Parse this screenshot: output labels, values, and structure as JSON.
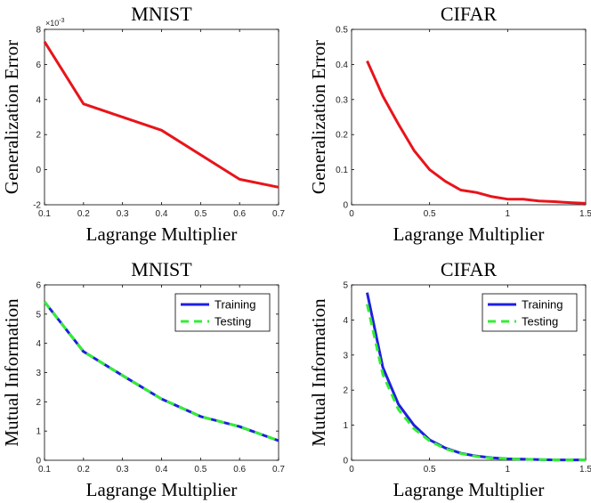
{
  "chart_data": [
    {
      "type": "line",
      "title": "MNIST",
      "xlabel": "Lagrange Multiplier",
      "ylabel": "Generalization Error",
      "xlim": [
        0.1,
        0.7
      ],
      "ylim": [
        -2,
        8
      ],
      "xticks": [
        0.1,
        0.2,
        0.3,
        0.4,
        0.5,
        0.6,
        0.7
      ],
      "xtick_labels": [
        "0.1",
        "0.2",
        "0.3",
        "0.4",
        "0.5",
        "0.6",
        "0.7"
      ],
      "yticks": [
        -2,
        0,
        2,
        4,
        6,
        8
      ],
      "ytick_labels": [
        "-2",
        "0",
        "2",
        "4",
        "6",
        "8"
      ],
      "y_exponent_label": "×10",
      "y_exponent_power": "-3",
      "series": [
        {
          "name": "Generalization Error",
          "color": "#e8141a",
          "dash": "solid",
          "x": [
            0.1,
            0.2,
            0.4,
            0.6,
            0.7
          ],
          "y": [
            7.3,
            3.75,
            2.25,
            -0.55,
            -1.0
          ]
        }
      ]
    },
    {
      "type": "line",
      "title": "CIFAR",
      "xlabel": "Lagrange Multiplier",
      "ylabel": "Generalization Error",
      "xlim": [
        0,
        1.5
      ],
      "ylim": [
        0,
        0.5
      ],
      "xticks": [
        0,
        0.5,
        1,
        1.5
      ],
      "xtick_labels": [
        "0",
        "0.5",
        "1",
        "1.5"
      ],
      "yticks": [
        0,
        0.1,
        0.2,
        0.3,
        0.4,
        0.5
      ],
      "ytick_labels": [
        "0",
        "0.1",
        "0.2",
        "0.3",
        "0.4",
        "0.5"
      ],
      "series": [
        {
          "name": "Generalization Error",
          "color": "#e8141a",
          "dash": "solid",
          "x": [
            0.1,
            0.2,
            0.3,
            0.4,
            0.5,
            0.6,
            0.7,
            0.8,
            0.9,
            1.0,
            1.1,
            1.2,
            1.3,
            1.4,
            1.5
          ],
          "y": [
            0.41,
            0.31,
            0.23,
            0.155,
            0.1,
            0.067,
            0.042,
            0.035,
            0.023,
            0.016,
            0.016,
            0.011,
            0.009,
            0.006,
            0.004
          ]
        }
      ]
    },
    {
      "type": "line",
      "title": "MNIST",
      "xlabel": "Lagrange Multiplier",
      "ylabel": "Mutual Information",
      "xlim": [
        0.1,
        0.7
      ],
      "ylim": [
        0,
        6
      ],
      "xticks": [
        0.1,
        0.2,
        0.3,
        0.4,
        0.5,
        0.6,
        0.7
      ],
      "xtick_labels": [
        "0.1",
        "0.2",
        "0.3",
        "0.4",
        "0.5",
        "0.6",
        "0.7"
      ],
      "yticks": [
        0,
        1,
        2,
        3,
        4,
        5,
        6
      ],
      "ytick_labels": [
        "0",
        "1",
        "2",
        "3",
        "4",
        "5",
        "6"
      ],
      "legend": [
        "Training",
        "Testing"
      ],
      "series": [
        {
          "name": "Training",
          "color": "#1f1fe0",
          "dash": "solid",
          "x": [
            0.1,
            0.2,
            0.3,
            0.4,
            0.5,
            0.6,
            0.7
          ],
          "y": [
            5.42,
            3.72,
            2.9,
            2.1,
            1.5,
            1.15,
            0.67
          ]
        },
        {
          "name": "Testing",
          "color": "#33ee33",
          "dash": "dashed",
          "x": [
            0.1,
            0.2,
            0.3,
            0.4,
            0.5,
            0.6,
            0.7
          ],
          "y": [
            5.42,
            3.72,
            2.9,
            2.1,
            1.5,
            1.15,
            0.67
          ]
        }
      ]
    },
    {
      "type": "line",
      "title": "CIFAR",
      "xlabel": "Lagrange Multiplier",
      "ylabel": "Mutual Information",
      "xlim": [
        0,
        1.5
      ],
      "ylim": [
        0,
        5
      ],
      "xticks": [
        0,
        0.5,
        1,
        1.5
      ],
      "xtick_labels": [
        "0",
        "0.5",
        "1",
        "1.5"
      ],
      "yticks": [
        0,
        1,
        2,
        3,
        4,
        5
      ],
      "ytick_labels": [
        "0",
        "1",
        "2",
        "3",
        "4",
        "5"
      ],
      "legend": [
        "Training",
        "Testing"
      ],
      "series": [
        {
          "name": "Training",
          "color": "#1f1fe0",
          "dash": "solid",
          "x": [
            0.1,
            0.2,
            0.3,
            0.4,
            0.5,
            0.6,
            0.7,
            0.8,
            0.9,
            1.0,
            1.1,
            1.2,
            1.3,
            1.4,
            1.5
          ],
          "y": [
            4.78,
            2.65,
            1.6,
            1.0,
            0.58,
            0.35,
            0.2,
            0.12,
            0.07,
            0.04,
            0.03,
            0.02,
            0.01,
            0.01,
            0.01
          ]
        },
        {
          "name": "Testing",
          "color": "#33ee33",
          "dash": "dashed",
          "x": [
            0.1,
            0.2,
            0.3,
            0.4,
            0.5,
            0.6,
            0.7,
            0.8,
            0.9,
            1.0,
            1.1,
            1.2,
            1.3,
            1.4,
            1.5
          ],
          "y": [
            4.45,
            2.45,
            1.45,
            0.9,
            0.55,
            0.33,
            0.19,
            0.11,
            0.06,
            0.04,
            0.03,
            0.02,
            0.01,
            0.01,
            0.01
          ]
        }
      ]
    }
  ]
}
